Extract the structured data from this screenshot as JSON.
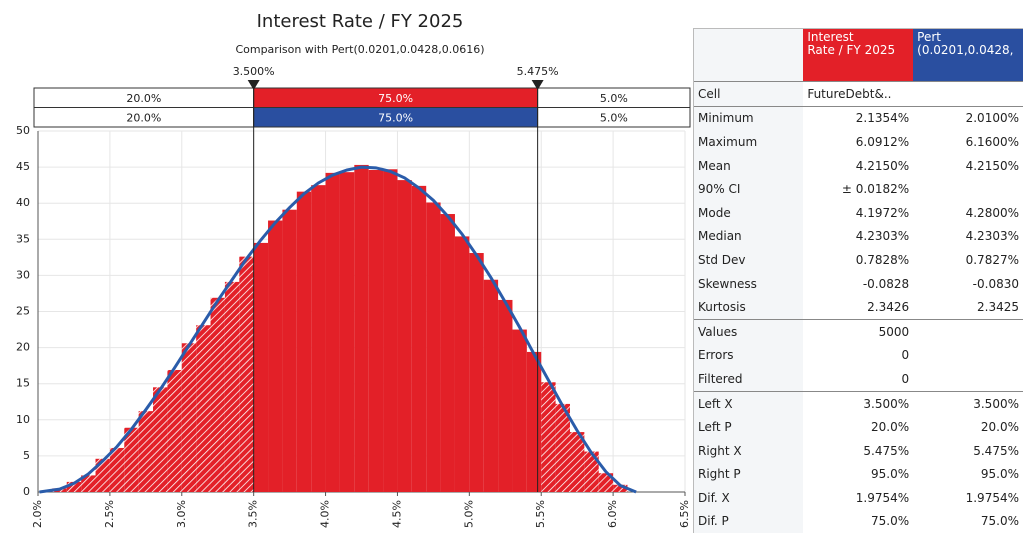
{
  "chart_data": {
    "type": "histogram",
    "title": "Interest Rate / FY 2025",
    "subtitle": "Comparison with Pert(0.0201,0.0428,0.0616)",
    "color": "#e32028",
    "bins": [
      2.1,
      2.2,
      2.3,
      2.4,
      2.5,
      2.6,
      2.7,
      2.8,
      2.9,
      3.0,
      3.1,
      3.2,
      3.3,
      3.4,
      3.5,
      3.6,
      3.7,
      3.8,
      3.9,
      4.0,
      4.1,
      4.2,
      4.3,
      4.4,
      4.5,
      4.6,
      4.7,
      4.8,
      4.9,
      5.0,
      5.1,
      5.2,
      5.3,
      5.4,
      5.5,
      5.6,
      5.7,
      5.8,
      5.9,
      6.0,
      6.1
    ],
    "values": [
      0.5,
      1.4,
      2.3,
      4.6,
      6.1,
      8.9,
      11.2,
      14.5,
      16.9,
      20.6,
      23.1,
      26.9,
      29.1,
      32.6,
      34.5,
      37.6,
      39.1,
      41.6,
      42.5,
      44.2,
      44.3,
      45.3,
      44.6,
      44.7,
      43.2,
      42.4,
      40.1,
      38.5,
      35.4,
      33.1,
      29.4,
      26.6,
      22.5,
      19.4,
      15.2,
      12.2,
      8.3,
      5.6,
      2.6,
      1.0
    ],
    "fit": {
      "name": "Pert",
      "color": "#2a5caa",
      "x": [
        2.01,
        2.15,
        2.25,
        2.35,
        2.45,
        2.55,
        2.65,
        2.75,
        2.85,
        2.95,
        3.05,
        3.15,
        3.25,
        3.35,
        3.45,
        3.55,
        3.65,
        3.75,
        3.85,
        3.95,
        4.05,
        4.15,
        4.25,
        4.35,
        4.45,
        4.55,
        4.65,
        4.75,
        4.85,
        4.95,
        5.05,
        5.15,
        5.25,
        5.35,
        5.45,
        5.55,
        5.65,
        5.75,
        5.85,
        5.95,
        6.05,
        6.16
      ],
      "values": [
        0,
        0.4,
        1.2,
        2.5,
        4.3,
        6.3,
        8.7,
        11.4,
        14.2,
        17.2,
        20.3,
        23.4,
        26.5,
        29.4,
        32.3,
        34.9,
        37.3,
        39.4,
        41.3,
        42.8,
        43.9,
        44.6,
        45.0,
        44.9,
        44.4,
        43.5,
        42.1,
        40.4,
        38.2,
        35.7,
        32.8,
        29.7,
        26.3,
        22.8,
        19.1,
        15.5,
        11.9,
        8.5,
        5.4,
        2.8,
        0.9,
        0
      ]
    },
    "xlim": [
      2.0,
      6.5
    ],
    "xticks": [
      {
        "value": 2.0,
        "label": "2.0%"
      },
      {
        "value": 2.5,
        "label": "2.5%"
      },
      {
        "value": 3.0,
        "label": "3.0%"
      },
      {
        "value": 3.5,
        "label": "3.5%"
      },
      {
        "value": 4.0,
        "label": "4.0%"
      },
      {
        "value": 4.5,
        "label": "4.5%"
      },
      {
        "value": 5.0,
        "label": "5.0%"
      },
      {
        "value": 5.5,
        "label": "5.5%"
      },
      {
        "value": 6.0,
        "label": "6.0%"
      },
      {
        "value": 6.5,
        "label": "6.5%"
      }
    ],
    "ylim": [
      0,
      50
    ],
    "yticks": [
      0,
      5,
      10,
      15,
      20,
      25,
      30,
      35,
      40,
      45,
      50
    ],
    "grid": true,
    "delimiters": [
      {
        "value": 3.5,
        "label": "3.500%"
      },
      {
        "value": 5.475,
        "label": "5.475%"
      }
    ],
    "bands": [
      {
        "color": "#e32028",
        "values": [
          20.0,
          75.0,
          5.0
        ],
        "value_labels": [
          "20.0%",
          "75.0%",
          "5.0%"
        ]
      },
      {
        "color": "#2a4fa0",
        "values": [
          20.0,
          75.0,
          5.0
        ],
        "value_labels": [
          "20.0%",
          "75.0%",
          "5.0%"
        ]
      }
    ]
  },
  "table": {
    "columns": [
      {
        "lines": [
          "Interest",
          "Rate / FY 2025"
        ],
        "color": "#e32028"
      },
      {
        "lines": [
          "Pert",
          "(0.0201,0.0428,"
        ],
        "color": "#2a4fa0"
      }
    ],
    "groups": [
      [
        [
          "Cell",
          "FutureDebt&..",
          null
        ]
      ],
      [
        [
          "Minimum",
          "2.1354%",
          "2.0100%"
        ],
        [
          "Maximum",
          "6.0912%",
          "6.1600%"
        ],
        [
          "Mean",
          "4.2150%",
          "4.2150%"
        ],
        [
          "90% CI",
          "± 0.0182%",
          null
        ],
        [
          "Mode",
          "4.1972%",
          "4.2800%"
        ],
        [
          "Median",
          "4.2303%",
          "4.2303%"
        ],
        [
          "Std Dev",
          "0.7828%",
          "0.7827%"
        ],
        [
          "Skewness",
          "-0.0828",
          "-0.0830"
        ],
        [
          "Kurtosis",
          "2.3426",
          "2.3425"
        ]
      ],
      [
        [
          "Values",
          "5000",
          null
        ],
        [
          "Errors",
          "0",
          null
        ],
        [
          "Filtered",
          "0",
          null
        ]
      ],
      [
        [
          "Left X",
          "3.500%",
          "3.500%"
        ],
        [
          "Left P",
          "20.0%",
          "20.0%"
        ],
        [
          "Right X",
          "5.475%",
          "5.475%"
        ],
        [
          "Right P",
          "95.0%",
          "95.0%"
        ],
        [
          "Dif. X",
          "1.9754%",
          "1.9754%"
        ],
        [
          "Dif. P",
          "75.0%",
          "75.0%"
        ]
      ]
    ]
  }
}
